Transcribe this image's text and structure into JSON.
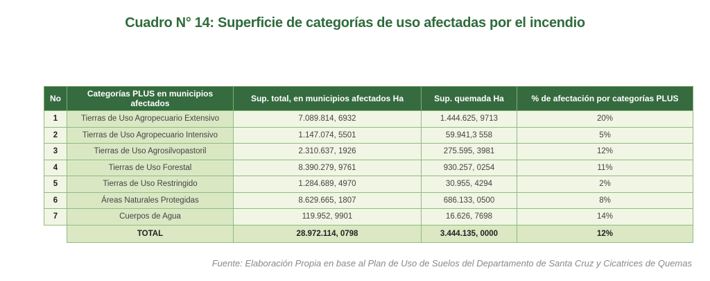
{
  "title": "Cuadro N° 14: Superficie de categorías de uso afectadas por el incendio",
  "table": {
    "headers": [
      "No",
      "Categorías PLUS en municipios afectados",
      "Sup. total, en municipios afectados Ha",
      "Sup. quemada Ha",
      "% de afectación por categorías PLUS"
    ],
    "rows": [
      [
        "1",
        "Tierras de Uso Agropecuario Extensivo",
        "7.089.814, 6932",
        "1.444.625, 9713",
        "20%"
      ],
      [
        "2",
        "Tierras de Uso Agropecuario Intensivo",
        "1.147.074, 5501",
        "59.941,3 558",
        "5%"
      ],
      [
        "3",
        "Tierras de Uso Agrosilvopastoril",
        "2.310.637, 1926",
        "275.595, 3981",
        "12%"
      ],
      [
        "4",
        "Tierras de Uso Forestal",
        "8.390.279, 9761",
        "930.257, 0254",
        "11%"
      ],
      [
        "5",
        "Tierras de Uso Restringido",
        "1.284.689, 4970",
        "30.955, 4294",
        "2%"
      ],
      [
        "6",
        "Áreas Naturales Protegidas",
        "8.629.665, 1807",
        "686.133, 0500",
        "8%"
      ],
      [
        "7",
        "Cuerpos de Agua",
        "119.952, 9901",
        "16.626, 7698",
        "14%"
      ]
    ],
    "total": [
      "TOTAL",
      "28.972.114, 0798",
      "3.444.135, 0000",
      "12%"
    ]
  },
  "source": "Fuente: Elaboración Propia en base al Plan de Uso de Suelos del Departamento de Santa Cruz y Cicatrices de Quemas"
}
